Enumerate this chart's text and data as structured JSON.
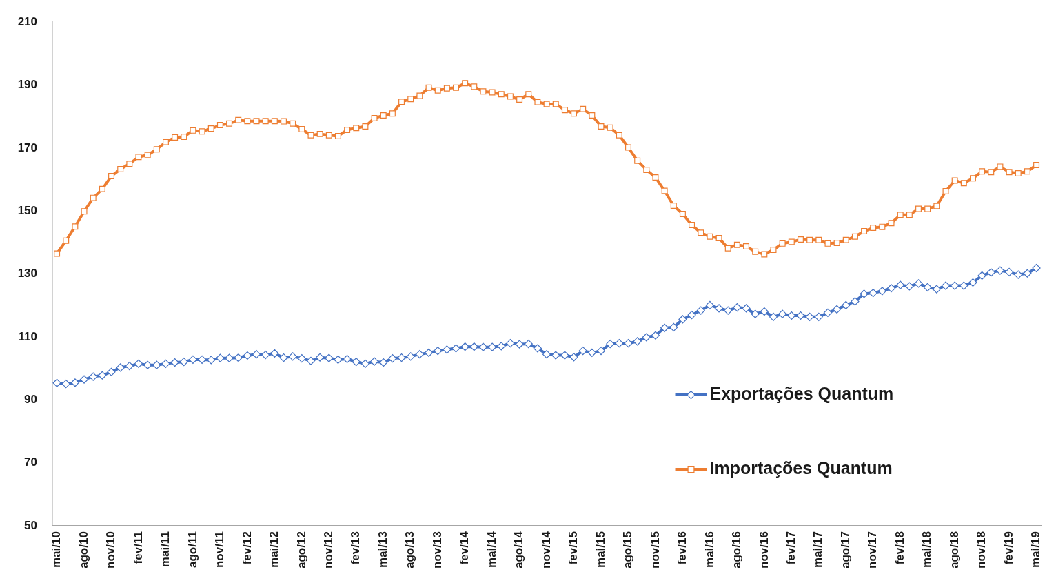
{
  "chart_data": {
    "type": "line",
    "categories": [
      "mai/10",
      null,
      null,
      "ago/10",
      null,
      null,
      "nov/10",
      null,
      null,
      "fev/11",
      null,
      null,
      "mai/11",
      null,
      null,
      "ago/11",
      null,
      null,
      "nov/11",
      null,
      null,
      "fev/12",
      null,
      null,
      "mai/12",
      null,
      null,
      "ago/12",
      null,
      null,
      "nov/12",
      null,
      null,
      "fev/13",
      null,
      null,
      "mai/13",
      null,
      null,
      "ago/13",
      null,
      null,
      "nov/13",
      null,
      null,
      "fev/14",
      null,
      null,
      "mai/14",
      null,
      null,
      "ago/14",
      null,
      null,
      "nov/14",
      null,
      null,
      "fev/15",
      null,
      null,
      "mai/15",
      null,
      null,
      "ago/15",
      null,
      null,
      "nov/15",
      null,
      null,
      "fev/16",
      null,
      null,
      "mai/16",
      null,
      null,
      "ago/16",
      null,
      null,
      "nov/16",
      null,
      null,
      "fev/17",
      null,
      null,
      "mai/17",
      null,
      null,
      "ago/17",
      null,
      null,
      "nov/17",
      null,
      null,
      "fev/18",
      null,
      null,
      "mai/18",
      null,
      null,
      "ago/18",
      null,
      null,
      "nov/18",
      null,
      null,
      "fev/19",
      null,
      null,
      "mai/19"
    ],
    "series": [
      {
        "name": "Exportações Quantum",
        "color": "#4472c4",
        "marker": "diamond",
        "values": [
          95.4,
          95.1,
          95.5,
          96.5,
          97.4,
          97.8,
          98.9,
          100.3,
          100.8,
          101.5,
          101.1,
          101.1,
          101.5,
          101.9,
          102.1,
          102.8,
          102.8,
          102.7,
          103.3,
          103.3,
          103.4,
          104.1,
          104.5,
          104.3,
          104.8,
          103.4,
          103.8,
          103.2,
          102.4,
          103.5,
          103.3,
          102.8,
          103,
          102.1,
          101.5,
          102.2,
          101.9,
          103.2,
          103.4,
          103.8,
          104.5,
          105,
          105.6,
          106,
          106.4,
          106.9,
          106.9,
          106.8,
          106.8,
          107.1,
          108,
          107.7,
          107.8,
          106.4,
          104.5,
          104.2,
          104.2,
          103.6,
          105.6,
          105,
          105.6,
          107.8,
          108,
          108,
          108.6,
          109.9,
          110.5,
          112.9,
          113.1,
          115.6,
          117,
          118.4,
          120.1,
          119.1,
          118.4,
          119.4,
          119.1,
          117.3,
          118.1,
          116.4,
          117.3,
          116.8,
          116.8,
          116.4,
          116.4,
          117.7,
          118.8,
          120.1,
          121.3,
          123.7,
          124,
          124.6,
          125.5,
          126.5,
          126.1,
          127,
          125.8,
          125.2,
          126.3,
          126.3,
          126.3,
          127.3,
          129.5,
          130.5,
          131.1,
          130.6,
          129.8,
          130.2,
          131.9
        ]
      },
      {
        "name": "Importações Quantum",
        "color": "#ed7d31",
        "marker": "square",
        "values": [
          136.5,
          140.6,
          145.1,
          149.9,
          154.2,
          157,
          161.1,
          163.3,
          165,
          167.2,
          167.8,
          169.6,
          171.9,
          173.4,
          173.6,
          175.6,
          175.3,
          176.2,
          177.3,
          177.8,
          178.9,
          178.6,
          178.6,
          178.6,
          178.6,
          178.5,
          177.8,
          176,
          174.1,
          174.5,
          174.1,
          173.8,
          175.8,
          176.4,
          176.9,
          179.5,
          180.4,
          181,
          184.7,
          185.6,
          186.6,
          189.2,
          188.3,
          189,
          189.2,
          190.6,
          189.5,
          188,
          187.7,
          187.1,
          186.4,
          185.4,
          187.1,
          184.6,
          184,
          184,
          182.1,
          181,
          182.4,
          180.4,
          176.9,
          176.5,
          174.1,
          170.2,
          166,
          163.1,
          160.7,
          156.4,
          151.7,
          149.1,
          145.6,
          143.1,
          141.9,
          141.4,
          138.2,
          139.3,
          138.8,
          137.1,
          136.3,
          137.7,
          139.7,
          140.2,
          141,
          140.8,
          140.8,
          139.7,
          139.9,
          140.8,
          141.9,
          143.6,
          144.7,
          145,
          146.2,
          148.8,
          148.8,
          150.7,
          150.7,
          151.6,
          156.3,
          159.7,
          158.9,
          160.4,
          162.6,
          162.4,
          164.1,
          162.4,
          162,
          162.6,
          164.6
        ]
      }
    ],
    "ylim": [
      50,
      210
    ],
    "yticks": [
      50,
      70,
      90,
      110,
      130,
      150,
      170,
      190,
      210
    ],
    "grid": false,
    "legend": "right",
    "line_style": "solid"
  }
}
